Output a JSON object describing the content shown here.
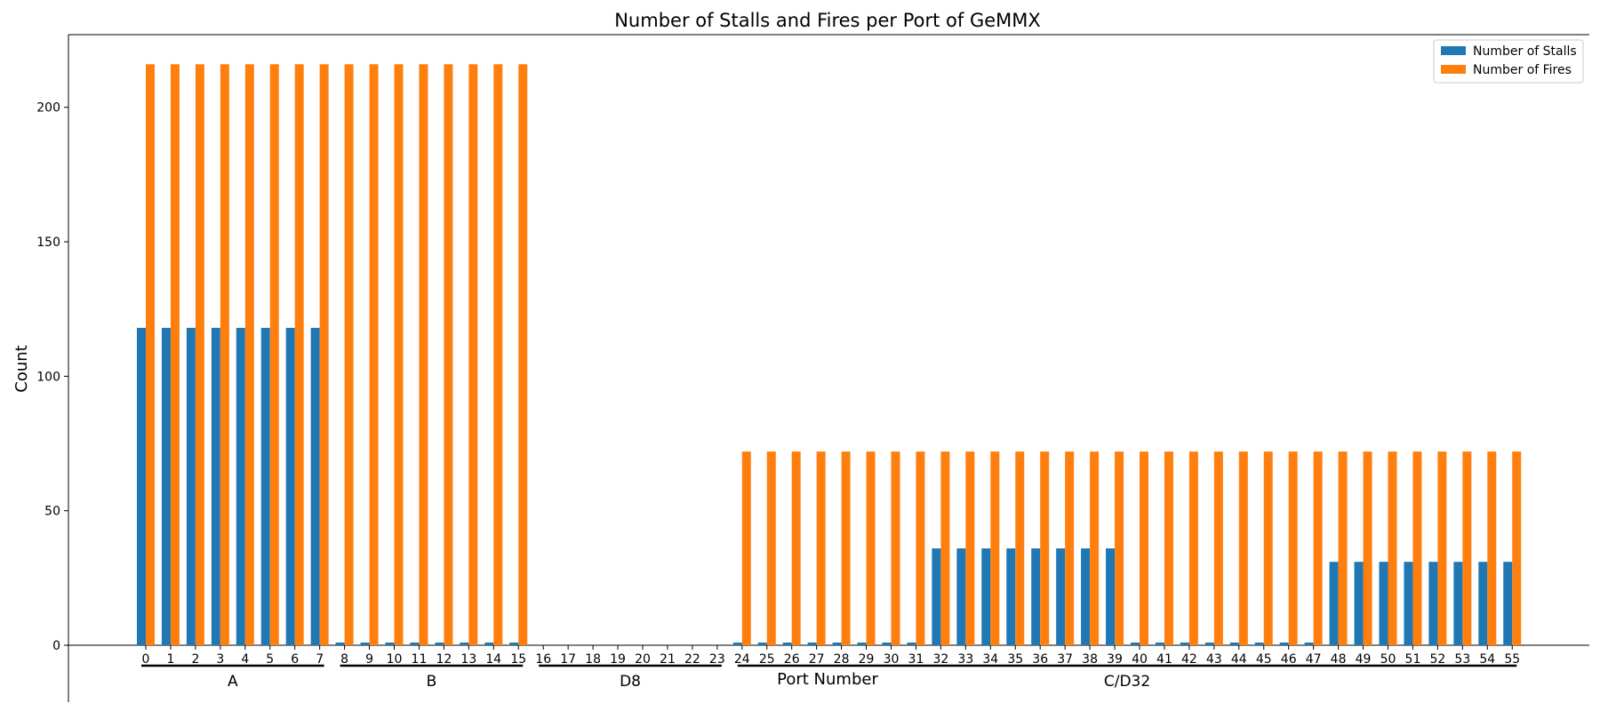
{
  "chart_data": {
    "type": "bar",
    "title": "Number of Stalls and Fires per Port of GeMMX",
    "xlabel": "Port Number",
    "ylabel": "Count",
    "ylim": [
      0,
      227
    ],
    "yticks": [
      0,
      50,
      100,
      150,
      200
    ],
    "legend_position": "top-right",
    "grid": false,
    "colors": {
      "stalls": "#1f77b4",
      "fires": "#ff7f0e"
    },
    "categories": [
      "0",
      "1",
      "2",
      "3",
      "4",
      "5",
      "6",
      "7",
      "8",
      "9",
      "10",
      "11",
      "12",
      "13",
      "14",
      "15",
      "16",
      "17",
      "18",
      "19",
      "20",
      "21",
      "22",
      "23",
      "24",
      "25",
      "26",
      "27",
      "28",
      "29",
      "30",
      "31",
      "32",
      "33",
      "34",
      "35",
      "36",
      "37",
      "38",
      "39",
      "40",
      "41",
      "42",
      "43",
      "44",
      "45",
      "46",
      "47",
      "48",
      "49",
      "50",
      "51",
      "52",
      "53",
      "54",
      "55"
    ],
    "series": [
      {
        "name": "Number of Stalls",
        "values": [
          118,
          118,
          118,
          118,
          118,
          118,
          118,
          118,
          1,
          1,
          1,
          1,
          1,
          1,
          1,
          1,
          0,
          0,
          0,
          0,
          0,
          0,
          0,
          0,
          1,
          1,
          1,
          1,
          1,
          1,
          1,
          1,
          36,
          36,
          36,
          36,
          36,
          36,
          36,
          36,
          1,
          1,
          1,
          1,
          1,
          1,
          1,
          1,
          31,
          31,
          31,
          31,
          31,
          31,
          31,
          31
        ]
      },
      {
        "name": "Number of Fires",
        "values": [
          216,
          216,
          216,
          216,
          216,
          216,
          216,
          216,
          216,
          216,
          216,
          216,
          216,
          216,
          216,
          216,
          0,
          0,
          0,
          0,
          0,
          0,
          0,
          0,
          72,
          72,
          72,
          72,
          72,
          72,
          72,
          72,
          72,
          72,
          72,
          72,
          72,
          72,
          72,
          72,
          72,
          72,
          72,
          72,
          72,
          72,
          72,
          72,
          72,
          72,
          72,
          72,
          72,
          72,
          72,
          72
        ]
      }
    ],
    "groups": [
      {
        "label": "A",
        "start": 0,
        "end": 7
      },
      {
        "label": "B",
        "start": 8,
        "end": 15
      },
      {
        "label": "D8",
        "start": 16,
        "end": 23
      },
      {
        "label": "C/D32",
        "start": 24,
        "end": 55
      }
    ]
  }
}
